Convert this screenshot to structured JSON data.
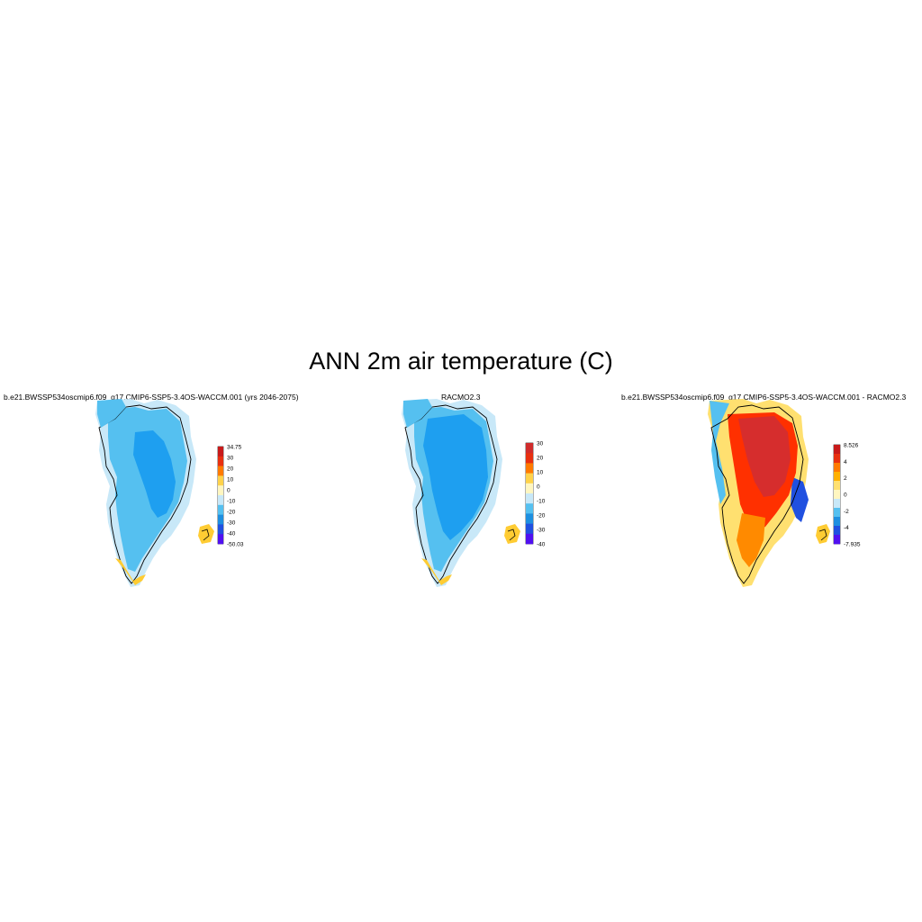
{
  "figure": {
    "title": "ANN 2m air temperature (C)"
  },
  "panels": [
    {
      "title": "b.e21.BWSSP534oscmip6.f09_g17.CMIP6-SSP5-3.4OS-WACCM.001 (yrs 2046-2075)",
      "colorbar": {
        "labels": [
          "34.75",
          "30",
          "20",
          "10",
          "0",
          "-10",
          "-20",
          "-30",
          "-40",
          "-50.03"
        ],
        "colors": [
          "#c81a1a",
          "#e83010",
          "#ff7a00",
          "#ffd24a",
          "#fff6c0",
          "#c8e8f8",
          "#55c0f0",
          "#1e8fe0",
          "#2050e0",
          "#5010f0"
        ]
      }
    },
    {
      "title": "RACMO2.3",
      "colorbar": {
        "labels": [
          "30",
          "20",
          "10",
          "0",
          "-10",
          "-20",
          "-30",
          "-40"
        ],
        "colors": [
          "#d02c2c",
          "#e83010",
          "#ff7a00",
          "#ffd24a",
          "#fff6c0",
          "#c8e8f8",
          "#55c0f0",
          "#1e8fe0",
          "#2050e0",
          "#5010f0"
        ]
      }
    },
    {
      "title": "b.e21.BWSSP534oscmip6.f09_g17.CMIP6-SSP5-3.4OS-WACCM.001 - RACMO2.3",
      "colorbar": {
        "labels": [
          "8.526",
          "4",
          "2",
          "0",
          "-2",
          "-4",
          "-7.935"
        ],
        "colors": [
          "#c81a1a",
          "#e83010",
          "#ff7a00",
          "#ffb000",
          "#ffe070",
          "#fff6c0",
          "#c8e8f8",
          "#55c0f0",
          "#1e8fe0",
          "#2050e0",
          "#5010f0"
        ]
      }
    }
  ]
}
